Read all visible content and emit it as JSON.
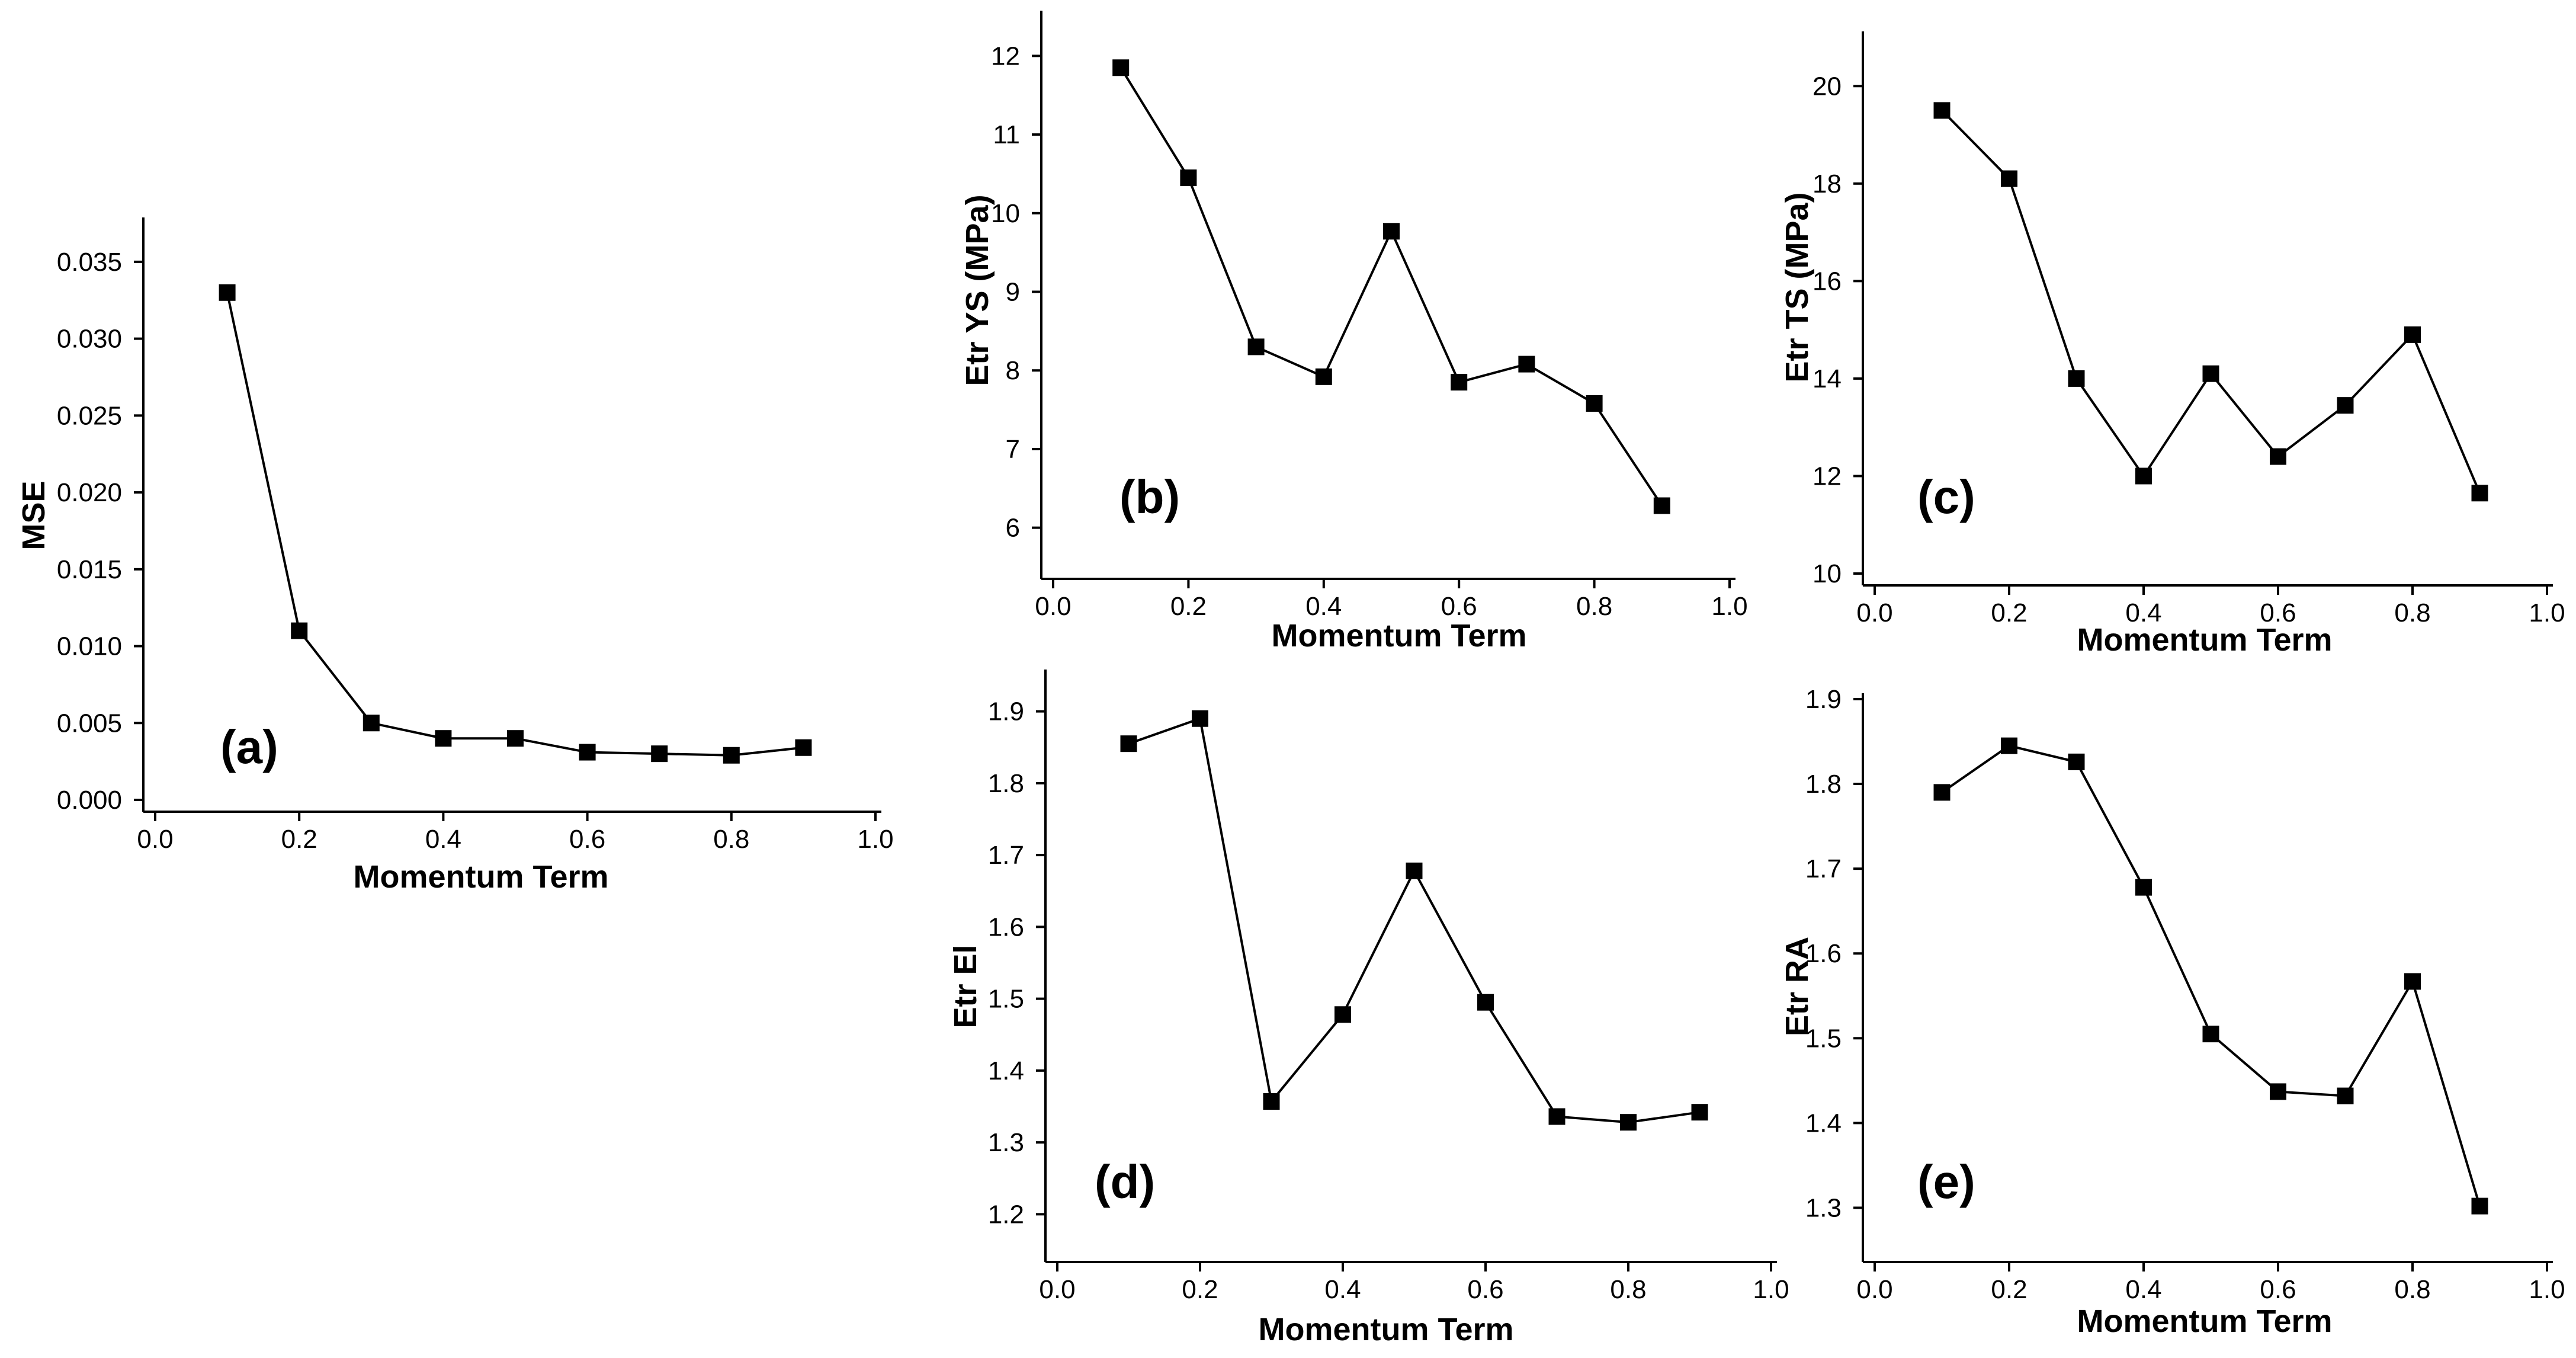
{
  "chart_data": [
    {
      "id": "a",
      "type": "line",
      "panel_label": "(a)",
      "title": "",
      "xlabel": "Momentum Term",
      "ylabel": "MSE",
      "xlim": [
        0.0,
        1.0
      ],
      "ylim": [
        0.0,
        0.0375
      ],
      "xticks": [
        "0.0",
        "0.2",
        "0.4",
        "0.6",
        "0.8",
        "1.0"
      ],
      "yticks": [
        "0.000",
        "0.005",
        "0.010",
        "0.015",
        "0.020",
        "0.025",
        "0.030",
        "0.035"
      ],
      "grid": false,
      "marker": "square",
      "x": [
        0.1,
        0.2,
        0.3,
        0.4,
        0.5,
        0.6,
        0.7,
        0.8,
        0.9
      ],
      "y": [
        0.033,
        0.011,
        0.005,
        0.004,
        0.004,
        0.0031,
        0.003,
        0.0029,
        0.0034
      ]
    },
    {
      "id": "b",
      "type": "line",
      "panel_label": "(b)",
      "title": "",
      "xlabel": "Momentum Term",
      "ylabel": "Etr YS (MPa)",
      "xlim": [
        0.0,
        1.0
      ],
      "ylim": [
        5.5,
        12.5
      ],
      "xticks": [
        "0.0",
        "0.2",
        "0.4",
        "0.6",
        "0.8",
        "1.0"
      ],
      "yticks": [
        "6",
        "7",
        "8",
        "9",
        "10",
        "11",
        "12"
      ],
      "grid": false,
      "marker": "square",
      "x": [
        0.1,
        0.2,
        0.3,
        0.4,
        0.5,
        0.6,
        0.7,
        0.8,
        0.9
      ],
      "y": [
        11.85,
        10.45,
        8.3,
        7.92,
        9.77,
        7.85,
        8.08,
        7.58,
        6.28
      ]
    },
    {
      "id": "c",
      "type": "line",
      "panel_label": "(c)",
      "title": "",
      "xlabel": "Momentum Term",
      "ylabel": "Etr TS (MPa)",
      "xlim": [
        0.0,
        1.0
      ],
      "ylim": [
        10,
        21
      ],
      "xticks": [
        "0.0",
        "0.2",
        "0.4",
        "0.6",
        "0.8",
        "1.0"
      ],
      "yticks": [
        "10",
        "12",
        "14",
        "16",
        "18",
        "20"
      ],
      "grid": false,
      "marker": "square",
      "x": [
        0.1,
        0.2,
        0.3,
        0.4,
        0.5,
        0.6,
        0.7,
        0.8,
        0.9
      ],
      "y": [
        19.5,
        18.1,
        14.0,
        12.0,
        14.1,
        12.4,
        13.45,
        14.9,
        11.65
      ]
    },
    {
      "id": "d",
      "type": "line",
      "panel_label": "(d)",
      "title": "",
      "xlabel": "Momentum Term",
      "ylabel": "Etr El",
      "xlim": [
        0.0,
        1.0
      ],
      "ylim": [
        1.15,
        1.95
      ],
      "xticks": [
        "0.0",
        "0.2",
        "0.4",
        "0.6",
        "0.8",
        "1.0"
      ],
      "yticks": [
        "1.2",
        "1.3",
        "1.4",
        "1.5",
        "1.6",
        "1.7",
        "1.8",
        "1.9"
      ],
      "grid": false,
      "marker": "square",
      "x": [
        0.1,
        0.2,
        0.3,
        0.4,
        0.5,
        0.6,
        0.7,
        0.8,
        0.9
      ],
      "y": [
        1.855,
        1.89,
        1.357,
        1.478,
        1.678,
        1.495,
        1.336,
        1.328,
        1.342
      ]
    },
    {
      "id": "e",
      "type": "line",
      "panel_label": "(e)",
      "title": "",
      "xlabel": "Momentum Term",
      "ylabel": "Etr RA",
      "xlim": [
        0.0,
        1.0
      ],
      "ylim": [
        1.25,
        1.9
      ],
      "xticks": [
        "0.0",
        "0.2",
        "0.4",
        "0.6",
        "0.8",
        "1.0"
      ],
      "yticks": [
        "1.3",
        "1.4",
        "1.5",
        "1.6",
        "1.7",
        "1.8",
        "1.9"
      ],
      "grid": false,
      "marker": "square",
      "x": [
        0.1,
        0.2,
        0.3,
        0.4,
        0.5,
        0.6,
        0.7,
        0.8,
        0.9
      ],
      "y": [
        1.79,
        1.845,
        1.826,
        1.678,
        1.505,
        1.437,
        1.432,
        1.567,
        1.302
      ]
    }
  ]
}
